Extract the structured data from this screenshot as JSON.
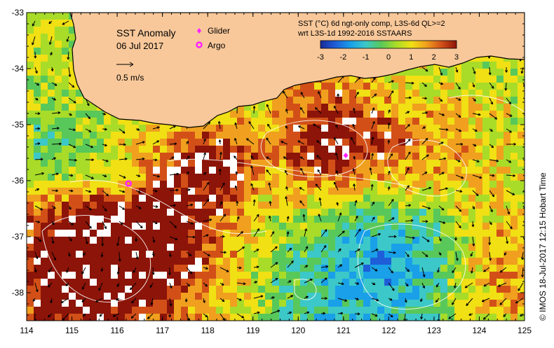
{
  "map": {
    "title": "SST Anomaly",
    "date": "06 Jul 2017",
    "velocity_scale": "0.5 m/s",
    "product_line1": "SST (°C) 6d ngt-only comp, L3S-6d QL>=2",
    "product_line2": "wrt L3S-1d 1992-2016 SSTAARS",
    "credit": "© IMOS 18-Jul-2017 12:15 Hobart Time",
    "lon_ticks": [
      "114",
      "115",
      "116",
      "117",
      "118",
      "119",
      "120",
      "121",
      "122",
      "123",
      "124",
      "125"
    ],
    "lat_ticks": [
      "-33",
      "-34",
      "-35",
      "-36",
      "-37",
      "-38"
    ],
    "colorbar": {
      "min": -3,
      "max": 3,
      "tick_labels": [
        "-3",
        "-2",
        "-1",
        "0",
        "1",
        "2",
        "3"
      ],
      "colors": [
        "#1a2a9a",
        "#1e5ed8",
        "#19a0e8",
        "#3cc8c8",
        "#58c85a",
        "#a8dc28",
        "#f0e014",
        "#f0a01e",
        "#d25018",
        "#8c1408"
      ]
    },
    "land_color": "#f8c89a",
    "legend": [
      {
        "label": "Glider",
        "color": "#ff22ff",
        "symbol": "diamond"
      },
      {
        "label": "Argo",
        "color": "#ff22ff",
        "symbol": "circle"
      }
    ],
    "platforms": [
      {
        "type": "glider",
        "lon": 121.05,
        "lat": -35.55
      },
      {
        "type": "argo",
        "lon": 116.25,
        "lat": -36.05
      }
    ]
  }
}
